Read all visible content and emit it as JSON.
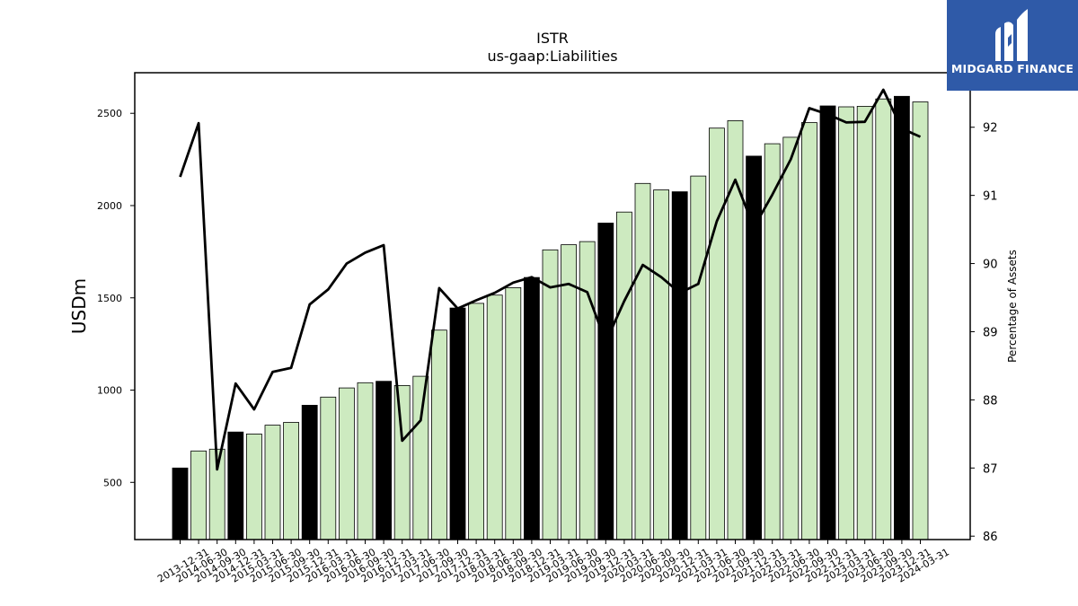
{
  "brand": {
    "name": "MIDGARD FINANCE",
    "color": "#2f5aa8"
  },
  "chart_data": {
    "type": "bar",
    "title": "ISTR",
    "subtitle": "us-gaap:Liabilities",
    "ylabel": "USDm",
    "y2label": "Percentage of Assets",
    "ylim": [
      190,
      2720
    ],
    "y2lim": [
      85.95,
      92.8
    ],
    "yticks": [
      500,
      1000,
      1500,
      2000,
      2500
    ],
    "y2ticks": [
      86,
      87,
      88,
      89,
      90,
      91,
      92
    ],
    "colors": {
      "annual": "#000000",
      "quarter": "#cdeac0",
      "line": "#000000"
    },
    "categories": [
      "2013-12-31",
      "2014-06-30",
      "2014-09-30",
      "2014-12-31",
      "2015-03-31",
      "2015-06-30",
      "2015-09-30",
      "2015-12-31",
      "2016-03-31",
      "2016-06-30",
      "2016-09-30",
      "2016-12-31",
      "2017-03-31",
      "2017-06-30",
      "2017-09-30",
      "2017-12-31",
      "2018-03-31",
      "2018-06-30",
      "2018-09-30",
      "2018-12-31",
      "2019-03-31",
      "2019-06-30",
      "2019-09-30",
      "2019-12-31",
      "2020-03-31",
      "2020-06-30",
      "2020-09-30",
      "2020-12-31",
      "2021-03-31",
      "2021-06-30",
      "2021-09-30",
      "2021-12-31",
      "2022-03-31",
      "2022-06-30",
      "2022-09-30",
      "2022-12-31",
      "2023-03-31",
      "2023-06-30",
      "2023-09-30",
      "2023-12-31",
      "2024-03-31"
    ],
    "series": [
      {
        "type": "bar",
        "values": [
          578,
          670,
          680,
          773,
          762,
          810,
          825,
          918,
          962,
          1012,
          1040,
          1048,
          1025,
          1075,
          1325,
          1445,
          1470,
          1515,
          1555,
          1610,
          1760,
          1788,
          1805,
          1905,
          1965,
          2120,
          2085,
          2075,
          2160,
          2420,
          2460,
          2268,
          2335,
          2370,
          2450,
          2540,
          2535,
          2538,
          2578,
          2592,
          2562
        ],
        "annual": [
          true,
          false,
          false,
          true,
          false,
          false,
          false,
          true,
          false,
          false,
          false,
          true,
          false,
          false,
          false,
          true,
          false,
          false,
          false,
          true,
          false,
          false,
          false,
          true,
          false,
          false,
          false,
          true,
          false,
          false,
          false,
          true,
          false,
          false,
          false,
          true,
          false,
          false,
          false,
          true,
          false
        ]
      },
      {
        "type": "line",
        "axis": "y2",
        "values": [
          91.27,
          92.06,
          86.98,
          88.24,
          87.86,
          88.41,
          88.47,
          89.4,
          89.62,
          90.0,
          90.16,
          90.27,
          87.4,
          87.7,
          89.64,
          89.34,
          89.46,
          89.57,
          89.72,
          89.8,
          89.65,
          89.7,
          89.58,
          88.85,
          89.45,
          89.98,
          89.8,
          89.57,
          89.7,
          90.62,
          91.23,
          90.53,
          91.01,
          91.53,
          92.28,
          92.19,
          92.07,
          92.08,
          92.55,
          91.98,
          91.86
        ]
      }
    ]
  }
}
